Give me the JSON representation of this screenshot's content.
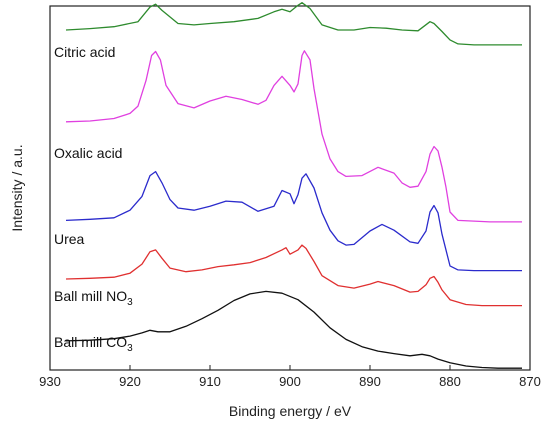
{
  "chart_data": {
    "type": "line",
    "title": "",
    "xlabel": "Binding energy / eV",
    "ylabel": "Intensity / a.u.",
    "xlim": [
      930,
      870
    ],
    "ylim": [
      0,
      10
    ],
    "x_reversed": true,
    "xticks": [
      930,
      920,
      910,
      900,
      890,
      880,
      870
    ],
    "grid": false,
    "y_tick_labels": false,
    "series": [
      {
        "name": "Citric acid",
        "color": "#2e8b2e",
        "x": [
          928,
          925,
          922,
          919,
          917.5,
          916.8,
          916,
          914,
          912,
          910,
          907,
          904,
          902,
          901,
          900,
          899,
          898.5,
          897.5,
          896,
          894,
          892,
          890,
          888,
          886,
          884,
          882.5,
          882,
          881,
          880,
          879,
          877,
          875,
          873,
          871
        ],
        "y": [
          9.34,
          9.38,
          9.43,
          9.57,
          9.97,
          10.05,
          9.88,
          9.52,
          9.48,
          9.52,
          9.57,
          9.66,
          9.84,
          9.91,
          9.84,
          10.02,
          10.09,
          9.93,
          9.48,
          9.34,
          9.34,
          9.41,
          9.39,
          9.34,
          9.32,
          9.57,
          9.52,
          9.3,
          9.07,
          8.96,
          8.93,
          8.93,
          8.93,
          8.93
        ]
      },
      {
        "name": "Oxalic acid",
        "color": "#e040e0",
        "x": [
          928,
          925,
          922,
          920,
          919,
          918,
          917.3,
          916.8,
          916.2,
          915.5,
          914,
          912,
          910,
          908,
          906,
          904,
          903,
          902,
          901,
          900,
          899.5,
          899,
          898.5,
          898.2,
          897.5,
          897,
          896,
          895,
          894,
          893,
          891,
          889,
          887,
          886,
          885,
          884,
          883,
          882.5,
          882,
          881.5,
          881,
          880.5,
          880,
          879,
          877,
          875,
          873,
          871
        ],
        "y": [
          6.82,
          6.84,
          6.91,
          7.05,
          7.25,
          7.95,
          8.64,
          8.75,
          8.52,
          7.82,
          7.32,
          7.2,
          7.39,
          7.52,
          7.43,
          7.3,
          7.41,
          7.82,
          8.07,
          7.82,
          7.64,
          7.86,
          8.64,
          8.77,
          8.52,
          7.73,
          6.48,
          5.8,
          5.45,
          5.32,
          5.34,
          5.57,
          5.41,
          5.14,
          5.02,
          5.05,
          5.45,
          5.93,
          6.14,
          6.02,
          5.57,
          5.02,
          4.34,
          4.11,
          4.09,
          4.07,
          4.07,
          4.07
        ]
      },
      {
        "name": "Urea",
        "color": "#2b2bcc",
        "x": [
          928,
          925,
          922,
          920,
          918.5,
          917.5,
          916.8,
          916,
          915,
          914,
          912,
          910,
          908,
          906,
          904,
          902,
          901,
          900,
          899.5,
          899,
          898.5,
          898,
          897,
          896,
          895,
          894,
          893,
          892,
          890,
          888.5,
          887,
          885,
          884,
          883,
          882.5,
          882,
          881.5,
          881,
          880,
          879,
          877,
          875,
          873,
          871
        ],
        "y": [
          4.11,
          4.14,
          4.18,
          4.39,
          4.77,
          5.34,
          5.45,
          5.14,
          4.68,
          4.45,
          4.39,
          4.5,
          4.64,
          4.61,
          4.36,
          4.5,
          4.93,
          4.84,
          4.57,
          4.82,
          5.27,
          5.39,
          5.0,
          4.32,
          3.84,
          3.55,
          3.43,
          3.45,
          3.82,
          4.0,
          3.84,
          3.52,
          3.48,
          3.82,
          4.34,
          4.52,
          4.32,
          3.73,
          2.86,
          2.75,
          2.73,
          2.73,
          2.73,
          2.73
        ]
      },
      {
        "name": "Ball mill NO3",
        "label_sub": "3",
        "color": "#e03030",
        "x": [
          928,
          925,
          922,
          920,
          918.5,
          917.5,
          916.8,
          916,
          915,
          913,
          911,
          909,
          907,
          905,
          903,
          901,
          900.5,
          900,
          899,
          898.5,
          898,
          897,
          896,
          894,
          892,
          890,
          889,
          887,
          885,
          884,
          883,
          882.5,
          882,
          881.5,
          881,
          880,
          878,
          876,
          874,
          871
        ],
        "y": [
          2.5,
          2.52,
          2.55,
          2.66,
          2.91,
          3.25,
          3.3,
          3.07,
          2.8,
          2.7,
          2.75,
          2.84,
          2.89,
          2.95,
          3.09,
          3.3,
          3.36,
          3.18,
          3.3,
          3.43,
          3.34,
          2.98,
          2.59,
          2.32,
          2.25,
          2.36,
          2.43,
          2.32,
          2.14,
          2.16,
          2.34,
          2.52,
          2.57,
          2.41,
          2.2,
          1.93,
          1.8,
          1.77,
          1.77,
          1.77
        ]
      },
      {
        "name": "Ball mill CO3",
        "label_sub": "3",
        "color": "#111111",
        "x": [
          928,
          925,
          922,
          920,
          918.5,
          917.5,
          916.5,
          915,
          913,
          911,
          909,
          907,
          905,
          903,
          901,
          899,
          897,
          895,
          893,
          891,
          889,
          887,
          885,
          883.5,
          882.5,
          881.5,
          880,
          878,
          876,
          874,
          871
        ],
        "y": [
          0.8,
          0.82,
          0.86,
          0.93,
          1.02,
          1.09,
          1.05,
          1.05,
          1.2,
          1.41,
          1.64,
          1.91,
          2.09,
          2.16,
          2.11,
          1.93,
          1.59,
          1.16,
          0.84,
          0.64,
          0.52,
          0.45,
          0.39,
          0.43,
          0.39,
          0.3,
          0.2,
          0.11,
          0.07,
          0.05,
          0.05
        ]
      }
    ]
  }
}
